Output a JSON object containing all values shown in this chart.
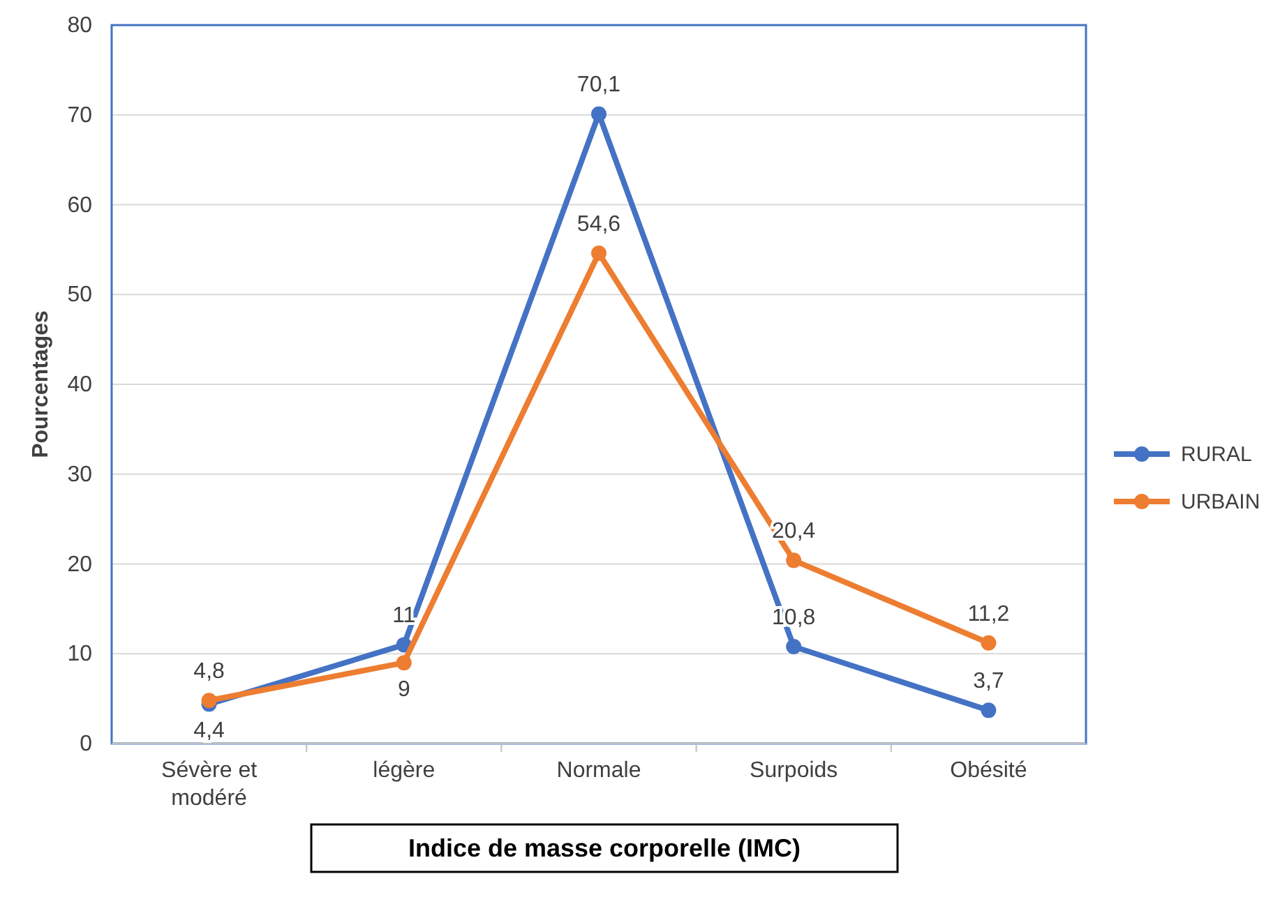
{
  "chart_data": {
    "type": "line",
    "xlabel": "Indice de masse corporelle (IMC)",
    "ylabel": "Pourcentages",
    "categories": [
      "Sévère et modéré",
      "légère",
      "Normale",
      "Surpoids",
      "Obésité"
    ],
    "series": [
      {
        "name": "RURAL",
        "color": "#4472c4",
        "values": [
          4.4,
          11,
          70.1,
          10.8,
          3.7
        ],
        "value_labels": [
          "4,4",
          "11",
          "70,1",
          "10,8",
          "3,7"
        ]
      },
      {
        "name": "URBAIN",
        "color": "#ed7d31",
        "values": [
          4.8,
          9,
          54.6,
          20.4,
          11.2
        ],
        "value_labels": [
          "4,8",
          "9",
          "54,6",
          "20,4",
          "11,2"
        ]
      }
    ],
    "ylim": [
      0,
      80
    ],
    "yticks": [
      0,
      10,
      20,
      30,
      40,
      50,
      60,
      70,
      80
    ],
    "grid": "y",
    "legend": "right",
    "marker": "circle"
  }
}
